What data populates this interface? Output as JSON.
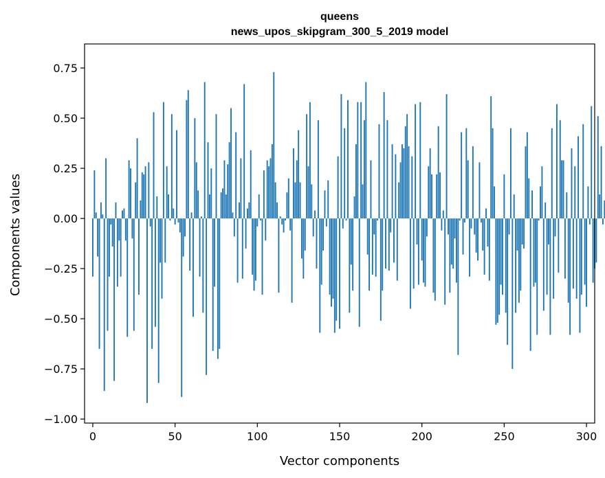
{
  "chart_data": {
    "type": "bar",
    "title_line1": "queens",
    "title_line2": "news_upos_skipgram_300_5_2019 model",
    "xlabel": "Vector components",
    "ylabel": "Components values",
    "xlim": [
      -5,
      305
    ],
    "ylim": [
      -1.02,
      0.87
    ],
    "xticks": [
      0,
      50,
      100,
      150,
      200,
      250,
      300
    ],
    "xtick_labels": [
      "0",
      "50",
      "100",
      "150",
      "200",
      "250",
      "300"
    ],
    "yticks": [
      0.75,
      0.5,
      0.25,
      0.0,
      -0.25,
      -0.5,
      -0.75,
      -1.0
    ],
    "ytick_labels": [
      "0.75",
      "0.50",
      "0.25",
      "0.00",
      "−0.25",
      "−0.50",
      "−0.75",
      "−1.00"
    ],
    "bar_color": "#1f77b4",
    "values": [
      -0.29,
      0.24,
      0.03,
      -0.19,
      -0.65,
      0.08,
      0.02,
      -0.86,
      0.3,
      -0.56,
      -0.29,
      -0.03,
      -0.14,
      -0.81,
      0.08,
      -0.34,
      -0.11,
      -0.29,
      0.04,
      0.05,
      -0.11,
      -0.59,
      0.29,
      0.25,
      -0.1,
      -0.56,
      0.18,
      0.4,
      -0.38,
      0.09,
      0.23,
      0.22,
      0.26,
      -0.92,
      0.28,
      -0.04,
      -0.65,
      0.53,
      -0.54,
      0.11,
      -0.82,
      -0.22,
      -0.4,
      0.58,
      -0.22,
      0.26,
      0.12,
      -0.01,
      0.52,
      0.05,
      -0.03,
      0.44,
      -0.02,
      -0.07,
      -0.89,
      -0.19,
      -0.09,
      0.59,
      0.64,
      -0.26,
      0.03,
      -0.49,
      0.5,
      0.28,
      0.14,
      -0.29,
      0.01,
      -0.47,
      0.68,
      -0.78,
      0.38,
      0.12,
      0.25,
      -0.66,
      -0.34,
      0.52,
      -0.7,
      -0.65,
      0.13,
      0.15,
      0.29,
      0.12,
      0.27,
      0.38,
      0.55,
      0.03,
      -0.09,
      0.43,
      -0.32,
      0.08,
      0.3,
      -0.3,
      0.67,
      -0.15,
      0.05,
      0.08,
      0.34,
      -0.28,
      -0.36,
      -0.31,
      -0.04,
      0.12,
      -0.01,
      -0.38,
      0.24,
      -0.11,
      0.29,
      0.26,
      0.3,
      0.37,
      0.73,
      0.18,
      0.08,
      -0.37,
      0.01,
      -0.03,
      -0.07,
      -0.01,
      0.13,
      0.2,
      -0.06,
      -0.42,
      0.35,
      0.18,
      0.29,
      0.44,
      0.18,
      -0.2,
      -0.3,
      -0.16,
      0.52,
      0.26,
      0.58,
      0.17,
      -0.09,
      0.04,
      -0.25,
      0.49,
      -0.57,
      -0.33,
      -0.16,
      0.14,
      -0.04,
      0.19,
      -0.38,
      -0.44,
      -0.4,
      -0.57,
      -0.51,
      0.31,
      -0.55,
      0.62,
      -0.05,
      0.45,
      -0.01,
      0.59,
      -0.47,
      -0.23,
      -0.36,
      0.11,
      0.37,
      0.58,
      -0.54,
      0.58,
      0.17,
      0.49,
      0.68,
      -0.18,
      -0.36,
      0.29,
      -0.28,
      -0.08,
      -0.29,
      -0.01,
      0.47,
      -0.51,
      -0.36,
      0.63,
      -0.25,
      0.49,
      -0.26,
      -0.07,
      0.37,
      -0.22,
      0.32,
      -0.31,
      0.18,
      0.28,
      0.37,
      0.35,
      0.46,
      0.52,
      0.36,
      -0.45,
      0.31,
      -0.35,
      0.57,
      -0.13,
      -0.33,
      0.58,
      -0.21,
      -0.32,
      -0.34,
      -0.09,
      0.26,
      0.35,
      0.22,
      -0.37,
      -0.41,
      0.22,
      0.46,
      0.23,
      -0.06,
      0.04,
      -0.43,
      0.62,
      -0.08,
      -0.37,
      -0.23,
      -0.25,
      -0.1,
      -0.32,
      -0.68,
      -0.01,
      0.43,
      -0.18,
      -0.02,
      0.45,
      0.29,
      -0.29,
      -0.05,
      0.36,
      -0.08,
      -0.17,
      -0.21,
      0.28,
      -0.02,
      -0.16,
      -0.28,
      0.05,
      -0.14,
      -0.31,
      0.61,
      0.45,
      0.16,
      -0.53,
      -0.52,
      -0.48,
      -0.33,
      -0.38,
      0.22,
      -0.47,
      -0.63,
      -0.08,
      0.45,
      -0.75,
      0.12,
      -0.47,
      -0.16,
      -0.42,
      -0.36,
      -0.13,
      -0.15,
      0.36,
      0.43,
      0.2,
      -0.66,
      0.14,
      -0.34,
      -0.32,
      -0.58,
      -0.01,
      0.16,
      0.26,
      -0.46,
      0.08,
      -0.38,
      -0.13,
      -0.58,
      0.45,
      -0.4,
      -0.09,
      0.57,
      -0.27,
      0.49,
      0.29,
      0.29,
      -0.3,
      0.13,
      -0.42,
      -0.58,
      0.35,
      -0.35,
      0.26,
      -0.4,
      0.41,
      -0.57,
      -0.38,
      0.47,
      -0.33,
      -0.44,
      0.16,
      -0.03,
      0.56,
      -0.32,
      -0.25,
      -0.22,
      0.51,
      0.12,
      0.36,
      -0.03,
      0.09
    ]
  }
}
